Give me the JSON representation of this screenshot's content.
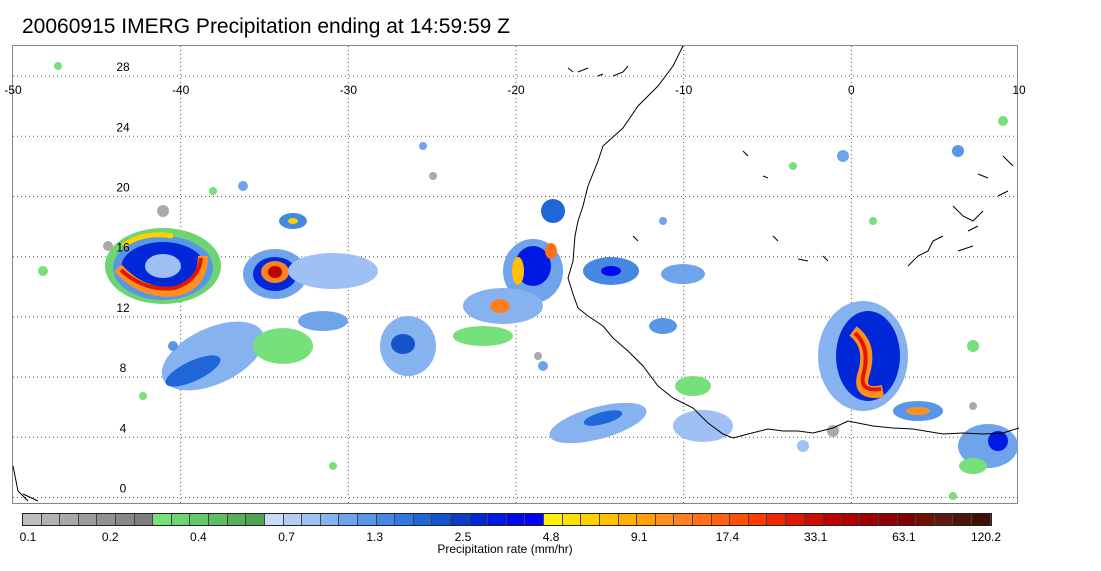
{
  "title": "20060915 IMERG Precipitation ending at 14:59:59 Z",
  "map": {
    "lon_ticks": [
      "-50",
      "-40",
      "-30",
      "-20",
      "-10",
      "0",
      "10"
    ],
    "lat_ticks": [
      "28",
      "24",
      "20",
      "16",
      "12",
      "8",
      "4",
      "0"
    ],
    "lon_range": [
      -50,
      10
    ],
    "lat_range": [
      -0.5,
      30
    ],
    "grid": "dotted",
    "coastline_color": "#000000"
  },
  "colorbar": {
    "title": "Precipitation rate (mm/hr)",
    "tick_labels": [
      "0.1",
      "0.2",
      "0.4",
      "0.7",
      "1.3",
      "2.5",
      "4.8",
      "9.1",
      "17.4",
      "33.1",
      "63.1",
      "120.2"
    ],
    "colors": [
      "#bebebe",
      "#b2b2b2",
      "#a8a8a8",
      "#9c9c9c",
      "#929292",
      "#888888",
      "#7e7e7e",
      "#76e07a",
      "#6ed472",
      "#66c86a",
      "#5ebc62",
      "#56b05a",
      "#4ea452",
      "#c8dcf8",
      "#b4ccf6",
      "#9ec0f4",
      "#86b2f0",
      "#6ea4ec",
      "#5896e8",
      "#4488e4",
      "#3278de",
      "#2066d6",
      "#1454cc",
      "#0a3cc8",
      "#0028d8",
      "#0018e4",
      "#0008ee",
      "#0000ff",
      "#fff000",
      "#ffe000",
      "#ffd000",
      "#ffc000",
      "#ffb000",
      "#ffa000",
      "#ff9020",
      "#ff8020",
      "#ff7018",
      "#ff6010",
      "#ff5008",
      "#ff3c00",
      "#f02800",
      "#e01800",
      "#d00c00",
      "#c00000",
      "#b00000",
      "#a00000",
      "#900000",
      "#800000",
      "#701000",
      "#601810",
      "#501408",
      "#401006"
    ]
  }
}
